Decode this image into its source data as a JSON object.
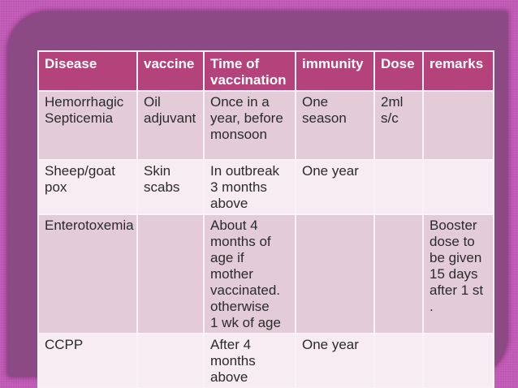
{
  "slide": {
    "table": {
      "headers": [
        "Disease",
        "vaccine",
        "Time of\nvaccination",
        "immunity",
        "Dose",
        "remarks"
      ],
      "rows": [
        {
          "cells": [
            "Hemorrhagic\nSepticemia",
            "Oil\nadjuvant",
            "Once in a\nyear, before\nmonsoon",
            "One\nseason",
            "2ml\ns/c",
            ""
          ]
        },
        {
          "cells": [
            "Sheep/goat\npox",
            "Skin\nscabs",
            "In outbreak\n3 months\nabove",
            "One year",
            "",
            ""
          ]
        },
        {
          "cells": [
            "Enterotoxemia",
            "",
            "About 4\nmonths of\nage if mother\nvaccinated.\notherwise\n1 wk of age",
            "",
            "",
            "Booster\ndose to\nbe given\n15 days\nafter 1 st ."
          ]
        },
        {
          "cells": [
            "CCPP",
            "",
            "After 4\nmonths\nabove",
            "One year",
            "",
            ""
          ]
        }
      ]
    },
    "colors": {
      "background": "#bf58b4",
      "frame": "#8c4a84",
      "header_bg": "#b5437b",
      "header_text": "#ffffff",
      "row_band_dark": "#e3ccd7",
      "row_band_light": "#f6ecf1",
      "grid_line": "#faf2f6",
      "body_text": "#2b2b2b"
    }
  }
}
